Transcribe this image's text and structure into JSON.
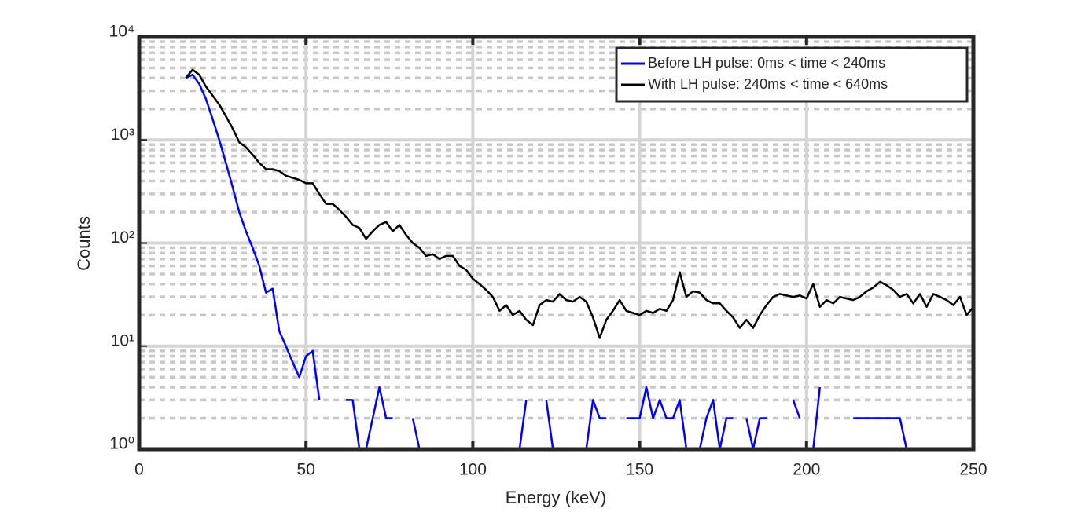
{
  "chart_data": {
    "type": "line",
    "x_label": "Energy (keV)",
    "y_label": "Counts",
    "x": [
      14,
      16,
      18,
      20,
      22,
      24,
      26,
      28,
      30,
      32,
      34,
      36,
      38,
      40,
      42,
      44,
      46,
      48,
      50,
      52,
      54,
      56,
      58,
      60,
      62,
      64,
      66,
      68,
      70,
      72,
      74,
      76,
      78,
      80,
      82,
      84,
      86,
      88,
      90,
      92,
      94,
      96,
      98,
      100,
      102,
      104,
      106,
      108,
      110,
      112,
      114,
      116,
      118,
      120,
      122,
      124,
      126,
      128,
      130,
      132,
      134,
      136,
      138,
      140,
      142,
      144,
      146,
      148,
      150,
      152,
      154,
      156,
      158,
      160,
      162,
      164,
      166,
      168,
      170,
      172,
      174,
      176,
      178,
      180,
      182,
      184,
      186,
      188,
      190,
      192,
      194,
      196,
      198,
      200,
      202,
      204,
      206,
      208,
      210,
      212,
      214,
      216,
      218,
      220,
      222,
      224,
      226,
      228,
      230,
      232,
      234,
      236,
      238,
      240,
      242,
      244,
      246,
      248,
      250
    ],
    "series": [
      {
        "name": "Before LH pulse: 0ms < time < 240ms",
        "color": "#0000ff",
        "values": [
          4000,
          4300,
          3500,
          2500,
          1600,
          1000,
          600,
          350,
          200,
          130,
          90,
          60,
          33,
          36,
          14,
          10,
          7,
          5,
          8,
          9,
          3,
          null,
          null,
          null,
          3,
          3,
          1,
          1,
          2,
          4,
          2,
          2,
          null,
          null,
          2,
          1,
          1,
          null,
          null,
          null,
          null,
          null,
          null,
          null,
          null,
          null,
          null,
          null,
          null,
          null,
          1,
          3,
          null,
          null,
          3,
          1,
          1,
          1,
          null,
          null,
          1,
          3,
          2,
          2,
          null,
          null,
          2,
          2,
          2,
          4,
          2,
          3,
          2,
          2,
          3,
          1,
          1,
          1,
          2,
          3,
          1,
          2,
          2,
          null,
          2,
          1,
          2,
          2,
          null,
          null,
          null,
          3,
          2,
          null,
          1,
          4,
          null,
          null,
          2,
          null,
          2,
          2,
          2,
          2,
          2,
          2,
          2,
          2,
          1,
          1,
          1,
          1,
          1,
          1,
          1,
          null,
          null,
          null,
          null
        ]
      },
      {
        "name": "With LH pulse: 240ms < time < 640ms",
        "color": "#000000",
        "values": [
          4000,
          4800,
          4300,
          3300,
          2700,
          2200,
          1700,
          1300,
          950,
          850,
          720,
          600,
          520,
          520,
          500,
          450,
          430,
          410,
          380,
          380,
          300,
          240,
          240,
          210,
          180,
          150,
          140,
          110,
          130,
          150,
          160,
          130,
          150,
          120,
          100,
          90,
          75,
          78,
          70,
          75,
          75,
          60,
          55,
          45,
          40,
          35,
          30,
          22,
          25,
          20,
          22,
          18,
          16,
          25,
          28,
          27,
          32,
          28,
          27,
          30,
          27,
          19,
          12,
          18,
          22,
          28,
          22,
          21,
          20,
          22,
          21,
          23,
          22,
          28,
          52,
          30,
          34,
          33,
          28,
          26,
          26,
          22,
          19,
          15,
          18,
          15,
          20,
          25,
          30,
          32,
          31,
          30,
          31,
          29,
          40,
          24,
          28,
          26,
          30,
          29,
          28,
          30,
          34,
          37,
          42,
          39,
          35,
          30,
          32,
          26,
          32,
          24,
          32,
          30,
          28,
          25,
          30,
          20,
          24
        ]
      }
    ],
    "xlim": [
      0,
      250
    ],
    "xticks": [
      0,
      50,
      100,
      150,
      200,
      250
    ],
    "ylim": [
      1,
      10000
    ],
    "log_y": true,
    "yticks": [
      {
        "value": 1,
        "label": "10⁰"
      },
      {
        "value": 10,
        "label": "10¹"
      },
      {
        "value": 100,
        "label": "10²"
      },
      {
        "value": 1000,
        "label": "10³"
      },
      {
        "value": 10000,
        "label": "10⁴"
      }
    ],
    "grid": true,
    "minor_grid": true,
    "legend": "northeast"
  }
}
